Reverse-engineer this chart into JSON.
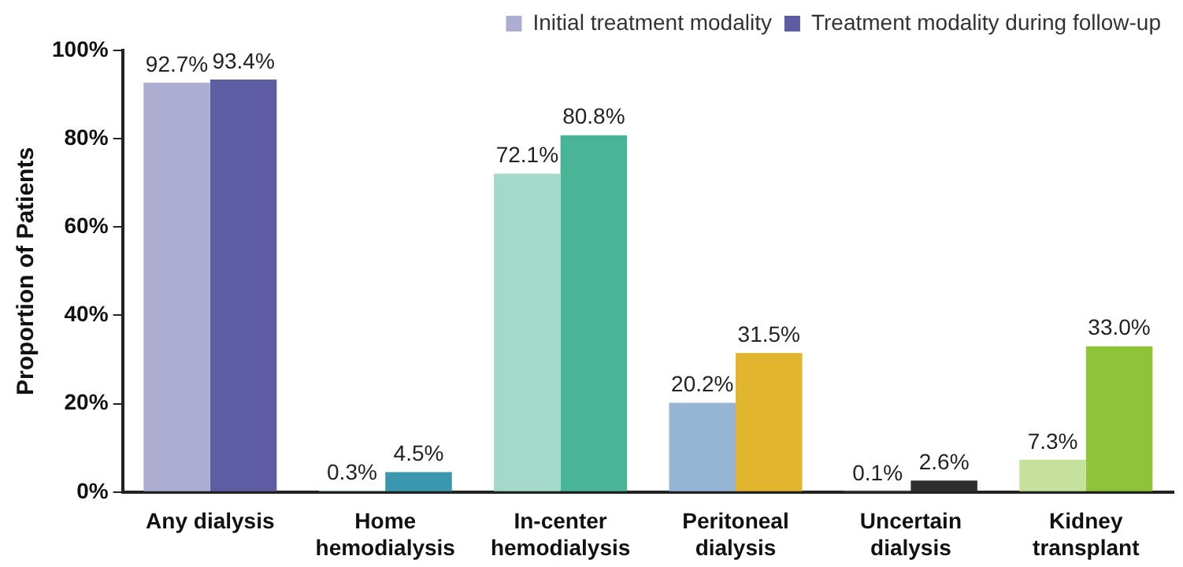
{
  "chart_data": {
    "type": "bar",
    "ylabel": "Proportion of Patients",
    "categories": [
      "Any dialysis",
      "Home hemodialysis",
      "In-center hemodialysis",
      "Peritoneal dialysis",
      "Uncertain dialysis",
      "Kidney transplant"
    ],
    "series": [
      {
        "name": "Initial treatment modality",
        "colors": [
          "#adadd2",
          "#9cc9d6",
          "#a2d9c9",
          "#96b4d3",
          "#999999",
          "#c5e19c"
        ],
        "values": [
          92.7,
          0.3,
          72.1,
          20.2,
          0.1,
          7.3
        ],
        "value_labels": [
          "92.7%",
          "0.3%",
          "72.1%",
          "20.2%",
          "0.1%",
          "7.3%"
        ]
      },
      {
        "name": "Treatment modality during follow-up",
        "colors": [
          "#5e5ca3",
          "#3a97ae",
          "#4ab596",
          "#e2b52e",
          "#2f2f2f",
          "#8ec33a"
        ],
        "values": [
          93.4,
          4.5,
          80.8,
          31.5,
          2.6,
          33.0
        ],
        "value_labels": [
          "93.4%",
          "4.5%",
          "80.8%",
          "31.5%",
          "2.6%",
          "33.0%"
        ]
      }
    ],
    "ylim": [
      0,
      100
    ],
    "yticks": [
      {
        "value": 0,
        "label": "0%"
      },
      {
        "value": 20,
        "label": "20%"
      },
      {
        "value": 40,
        "label": "40%"
      },
      {
        "value": 60,
        "label": "60%"
      },
      {
        "value": 80,
        "label": "80%"
      },
      {
        "value": 100,
        "label": "100%"
      }
    ],
    "grid": false,
    "legend": "top"
  }
}
